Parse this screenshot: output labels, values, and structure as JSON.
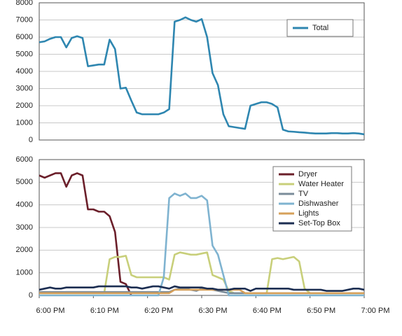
{
  "chart_data": [
    {
      "type": "line",
      "x": [
        0,
        1,
        2,
        3,
        4,
        5,
        6,
        7,
        8,
        9,
        10,
        11,
        12,
        13,
        14,
        15,
        16,
        17,
        18,
        19,
        20,
        21,
        22,
        23,
        24,
        25,
        26,
        27,
        28,
        29,
        30,
        31,
        32,
        33,
        34,
        35,
        36,
        37,
        38,
        39,
        40,
        41,
        42,
        43,
        44,
        45,
        46,
        47,
        48,
        49,
        50,
        51,
        52,
        53,
        54,
        55,
        56,
        57,
        58,
        59,
        60
      ],
      "series": [
        {
          "name": "Total",
          "color": "#2e86b0",
          "values": [
            5700,
            5750,
            5900,
            6000,
            6000,
            5400,
            5950,
            6050,
            5950,
            4300,
            4350,
            4400,
            4400,
            5850,
            5300,
            3000,
            3050,
            2300,
            1600,
            1500,
            1500,
            1500,
            1500,
            1600,
            1800,
            6900,
            7000,
            7150,
            7000,
            6900,
            7050,
            6000,
            3900,
            3200,
            1500,
            800,
            750,
            700,
            650,
            2000,
            2100,
            2200,
            2200,
            2100,
            1900,
            600,
            500,
            480,
            450,
            430,
            400,
            380,
            380,
            380,
            400,
            400,
            380,
            380,
            400,
            380,
            330
          ]
        }
      ],
      "xlim": [
        0,
        60
      ],
      "ylim": [
        0,
        8000
      ],
      "yticks": [
        0,
        1000,
        2000,
        3000,
        4000,
        5000,
        6000,
        7000,
        8000
      ],
      "grid": true
    },
    {
      "type": "line",
      "x": [
        0,
        1,
        2,
        3,
        4,
        5,
        6,
        7,
        8,
        9,
        10,
        11,
        12,
        13,
        14,
        15,
        16,
        17,
        18,
        19,
        20,
        21,
        22,
        23,
        24,
        25,
        26,
        27,
        28,
        29,
        30,
        31,
        32,
        33,
        34,
        35,
        36,
        37,
        38,
        39,
        40,
        41,
        42,
        43,
        44,
        45,
        46,
        47,
        48,
        49,
        50,
        51,
        52,
        53,
        54,
        55,
        56,
        57,
        58,
        59,
        60
      ],
      "series": [
        {
          "name": "Dryer",
          "color": "#6b1f2a",
          "values": [
            5300,
            5200,
            5300,
            5400,
            5400,
            4800,
            5300,
            5400,
            5300,
            3800,
            3800,
            3700,
            3700,
            3500,
            2800,
            600,
            500,
            0,
            null,
            null,
            null,
            null,
            null,
            null,
            null,
            null,
            null,
            null,
            null,
            null,
            null,
            null,
            null,
            null,
            null,
            null,
            null,
            null,
            null,
            null,
            null,
            null,
            null,
            null,
            null,
            null,
            null,
            null,
            null,
            null,
            null,
            null,
            null,
            null,
            null,
            null,
            null,
            null,
            null,
            null,
            null
          ]
        },
        {
          "name": "Water Heater",
          "color": "#c8cf7a",
          "values": [
            100,
            100,
            100,
            100,
            100,
            100,
            100,
            100,
            100,
            100,
            100,
            100,
            100,
            1600,
            1700,
            1700,
            1750,
            900,
            800,
            800,
            800,
            800,
            800,
            800,
            700,
            1800,
            1900,
            1850,
            1800,
            1800,
            1850,
            1900,
            900,
            800,
            700,
            200,
            100,
            100,
            100,
            100,
            100,
            100,
            100,
            1600,
            1650,
            1600,
            1650,
            1700,
            1500,
            300,
            100,
            100,
            100,
            100,
            100,
            100,
            100,
            100,
            100,
            100,
            100
          ]
        },
        {
          "name": "TV",
          "color": "#7b8c9a",
          "values": [
            150,
            150,
            150,
            150,
            150,
            150,
            150,
            150,
            150,
            150,
            150,
            150,
            150,
            150,
            150,
            150,
            150,
            150,
            150,
            150,
            150,
            150,
            150,
            150,
            150,
            250,
            300,
            300,
            250,
            200,
            300,
            300,
            250,
            200,
            150,
            100,
            100,
            100,
            100,
            100,
            100,
            100,
            100,
            100,
            100,
            100,
            100,
            100,
            100,
            100,
            100,
            100,
            100,
            100,
            100,
            100,
            100,
            100,
            100,
            100,
            100
          ]
        },
        {
          "name": "Dishwasher",
          "color": "#7fb3d0",
          "values": [
            0,
            0,
            0,
            0,
            0,
            0,
            0,
            0,
            0,
            0,
            0,
            0,
            0,
            0,
            0,
            0,
            0,
            0,
            0,
            0,
            0,
            0,
            0,
            800,
            4300,
            4500,
            4400,
            4500,
            4300,
            4300,
            4400,
            4200,
            2200,
            1800,
            900,
            0,
            0,
            0,
            0,
            0,
            0,
            0,
            0,
            0,
            0,
            0,
            0,
            0,
            0,
            0,
            0,
            0,
            0,
            0,
            0,
            0,
            0,
            0,
            0,
            0,
            0
          ]
        },
        {
          "name": "Lights",
          "color": "#d6a05a",
          "values": [
            100,
            100,
            100,
            100,
            100,
            100,
            100,
            100,
            100,
            100,
            100,
            100,
            100,
            100,
            100,
            100,
            100,
            100,
            100,
            100,
            100,
            100,
            100,
            100,
            100,
            250,
            250,
            250,
            250,
            250,
            250,
            250,
            250,
            250,
            250,
            250,
            250,
            250,
            100,
            100,
            100,
            100,
            100,
            100,
            100,
            100,
            100,
            100,
            100,
            100,
            100,
            100,
            100,
            100,
            100,
            100,
            100,
            100,
            100,
            100,
            100
          ]
        },
        {
          "name": "Set-Top Box",
          "color": "#1c2e52",
          "values": [
            250,
            300,
            350,
            300,
            300,
            350,
            350,
            350,
            350,
            350,
            350,
            400,
            400,
            400,
            400,
            400,
            400,
            350,
            350,
            300,
            350,
            400,
            400,
            350,
            300,
            400,
            350,
            350,
            350,
            350,
            350,
            300,
            300,
            250,
            250,
            250,
            300,
            300,
            300,
            200,
            300,
            300,
            300,
            300,
            300,
            300,
            300,
            250,
            250,
            250,
            250,
            250,
            250,
            200,
            200,
            200,
            200,
            250,
            300,
            300,
            250
          ]
        }
      ],
      "xlim": [
        0,
        60
      ],
      "xticks": [
        {
          "value": 0,
          "label": "6:00 PM"
        },
        {
          "value": 10,
          "label": "6:10 PM"
        },
        {
          "value": 20,
          "label": "6:20 PM"
        },
        {
          "value": 30,
          "label": "6:30 PM"
        },
        {
          "value": 40,
          "label": "6:40 PM"
        },
        {
          "value": 50,
          "label": "6:50 PM"
        },
        {
          "value": 60,
          "label": "7:00 PM"
        }
      ],
      "ylim": [
        0,
        6000
      ],
      "yticks": [
        0,
        1000,
        2000,
        3000,
        4000,
        5000,
        6000
      ],
      "grid": true
    }
  ]
}
